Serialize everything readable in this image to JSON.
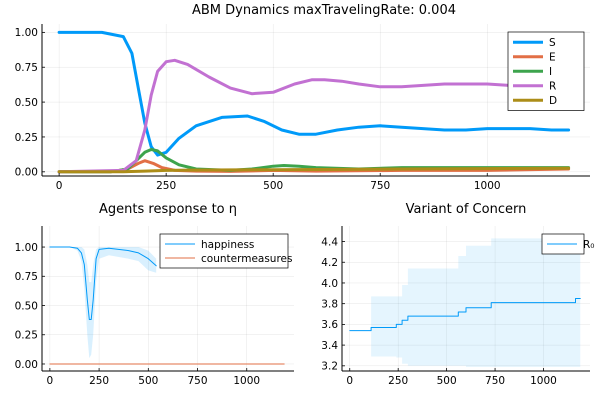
{
  "chart_data": [
    {
      "type": "line",
      "title": "ABM Dynamics maxTravelingRate: 0.004",
      "xlim": [
        -40,
        1240
      ],
      "ylim": [
        -0.03,
        1.06
      ],
      "xticks": [
        0,
        250,
        500,
        750,
        1000
      ],
      "yticks": [
        0.0,
        0.25,
        0.5,
        0.75,
        1.0
      ],
      "ytick_labels": [
        "0.00",
        "0.25",
        "0.50",
        "0.75",
        "1.00"
      ],
      "grid": true,
      "legend_position": "top-right",
      "series": [
        {
          "name": "S",
          "color": "#009af9",
          "x": [
            0,
            100,
            150,
            170,
            185,
            200,
            215,
            230,
            250,
            280,
            320,
            380,
            440,
            480,
            520,
            560,
            600,
            650,
            700,
            750,
            800,
            850,
            900,
            950,
            1000,
            1050,
            1100,
            1150,
            1190
          ],
          "y": [
            1.0,
            1.0,
            0.97,
            0.85,
            0.6,
            0.35,
            0.18,
            0.12,
            0.14,
            0.24,
            0.33,
            0.39,
            0.4,
            0.36,
            0.3,
            0.27,
            0.27,
            0.3,
            0.32,
            0.33,
            0.32,
            0.31,
            0.3,
            0.3,
            0.31,
            0.31,
            0.31,
            0.3,
            0.3
          ]
        },
        {
          "name": "E",
          "color": "#e26f46",
          "x": [
            0,
            120,
            160,
            185,
            200,
            220,
            240,
            270,
            320,
            400,
            500,
            600,
            800,
            1000,
            1190
          ],
          "y": [
            0.0,
            0.0,
            0.02,
            0.06,
            0.08,
            0.06,
            0.03,
            0.01,
            0.005,
            0.003,
            0.01,
            0.005,
            0.01,
            0.01,
            0.02
          ]
        },
        {
          "name": "I",
          "color": "#3da44d",
          "x": [
            0,
            120,
            160,
            180,
            200,
            215,
            230,
            250,
            280,
            320,
            400,
            450,
            500,
            525,
            560,
            600,
            700,
            800,
            900,
            1000,
            1100,
            1190
          ],
          "y": [
            0.0,
            0.0,
            0.02,
            0.08,
            0.14,
            0.16,
            0.15,
            0.1,
            0.05,
            0.02,
            0.01,
            0.02,
            0.04,
            0.045,
            0.04,
            0.03,
            0.02,
            0.03,
            0.03,
            0.03,
            0.03,
            0.03
          ]
        },
        {
          "name": "R",
          "color": "#c271d2",
          "x": [
            0,
            150,
            180,
            200,
            215,
            230,
            250,
            270,
            300,
            350,
            400,
            450,
            500,
            550,
            590,
            620,
            660,
            700,
            750,
            800,
            850,
            900,
            950,
            1000,
            1050,
            1100,
            1150,
            1190
          ],
          "y": [
            0.0,
            0.01,
            0.08,
            0.3,
            0.55,
            0.72,
            0.79,
            0.8,
            0.77,
            0.68,
            0.6,
            0.56,
            0.57,
            0.63,
            0.66,
            0.66,
            0.65,
            0.63,
            0.61,
            0.61,
            0.62,
            0.63,
            0.63,
            0.63,
            0.62,
            0.62,
            0.62,
            0.62
          ]
        },
        {
          "name": "D",
          "color": "#ac8d18",
          "x": [
            0,
            150,
            200,
            250,
            300,
            500,
            800,
            1190
          ],
          "y": [
            0.0,
            0.0,
            0.005,
            0.01,
            0.012,
            0.015,
            0.02,
            0.025
          ]
        }
      ]
    },
    {
      "type": "line",
      "title": "Agents response to η",
      "xlim": [
        -40,
        1240
      ],
      "ylim": [
        -0.06,
        1.18
      ],
      "xticks": [
        0,
        250,
        500,
        750,
        1000
      ],
      "yticks": [
        0.0,
        0.25,
        0.5,
        0.75,
        1.0
      ],
      "ytick_labels": [
        "0.00",
        "0.25",
        "0.50",
        "0.75",
        "1.00"
      ],
      "grid": true,
      "legend_position": "top-right",
      "series": [
        {
          "name": "happiness",
          "color": "#009af9",
          "x": [
            0,
            100,
            140,
            160,
            175,
            190,
            200,
            210,
            220,
            235,
            250,
            300,
            400,
            450,
            500,
            540
          ],
          "y": [
            1.0,
            1.0,
            0.99,
            0.95,
            0.85,
            0.55,
            0.38,
            0.38,
            0.55,
            0.9,
            0.98,
            0.99,
            0.97,
            0.95,
            0.9,
            0.84
          ],
          "band_lower": [
            1.0,
            1.0,
            0.97,
            0.88,
            0.65,
            0.25,
            0.05,
            0.08,
            0.25,
            0.7,
            0.9,
            0.93,
            0.9,
            0.88,
            0.8,
            0.78
          ],
          "band_upper": [
            1.0,
            1.0,
            1.0,
            1.0,
            0.98,
            0.85,
            0.7,
            0.7,
            0.85,
            0.98,
            1.0,
            1.0,
            1.0,
            1.0,
            0.97,
            0.9
          ]
        },
        {
          "name": "countermeasures",
          "color": "#e26f46",
          "x": [
            0,
            1190
          ],
          "y": [
            0.0,
            0.0
          ]
        }
      ]
    },
    {
      "type": "line",
      "title": "Variant of Concern",
      "xlim": [
        -40,
        1240
      ],
      "ylim": [
        3.15,
        4.55
      ],
      "xticks": [
        0,
        250,
        500,
        750,
        1000
      ],
      "yticks": [
        3.2,
        3.4,
        3.6,
        3.8,
        4.0,
        4.2,
        4.4
      ],
      "ytick_labels": [
        "3.2",
        "3.4",
        "3.6",
        "3.8",
        "4.0",
        "4.2",
        "4.4"
      ],
      "grid": true,
      "legend_position": "top-right",
      "series": [
        {
          "name": "R₀",
          "color": "#009af9",
          "x": [
            0,
            110,
            110,
            240,
            240,
            270,
            270,
            300,
            300,
            560,
            560,
            600,
            600,
            730,
            730,
            1165,
            1165,
            1190
          ],
          "y": [
            3.54,
            3.54,
            3.57,
            3.57,
            3.6,
            3.6,
            3.64,
            3.64,
            3.68,
            3.68,
            3.72,
            3.72,
            3.76,
            3.76,
            3.81,
            3.81,
            3.85,
            3.85
          ],
          "band_lower": [
            3.54,
            3.54,
            3.29,
            3.29,
            3.28,
            3.28,
            3.22,
            3.22,
            3.2,
            3.2,
            3.2,
            3.2,
            3.19,
            3.19,
            3.19,
            3.19,
            3.19,
            3.19
          ],
          "band_upper": [
            3.54,
            3.54,
            3.87,
            3.87,
            3.87,
            3.87,
            3.98,
            3.98,
            4.14,
            4.14,
            4.26,
            4.26,
            4.36,
            4.36,
            4.43,
            4.43,
            4.45,
            4.45
          ]
        }
      ]
    }
  ]
}
